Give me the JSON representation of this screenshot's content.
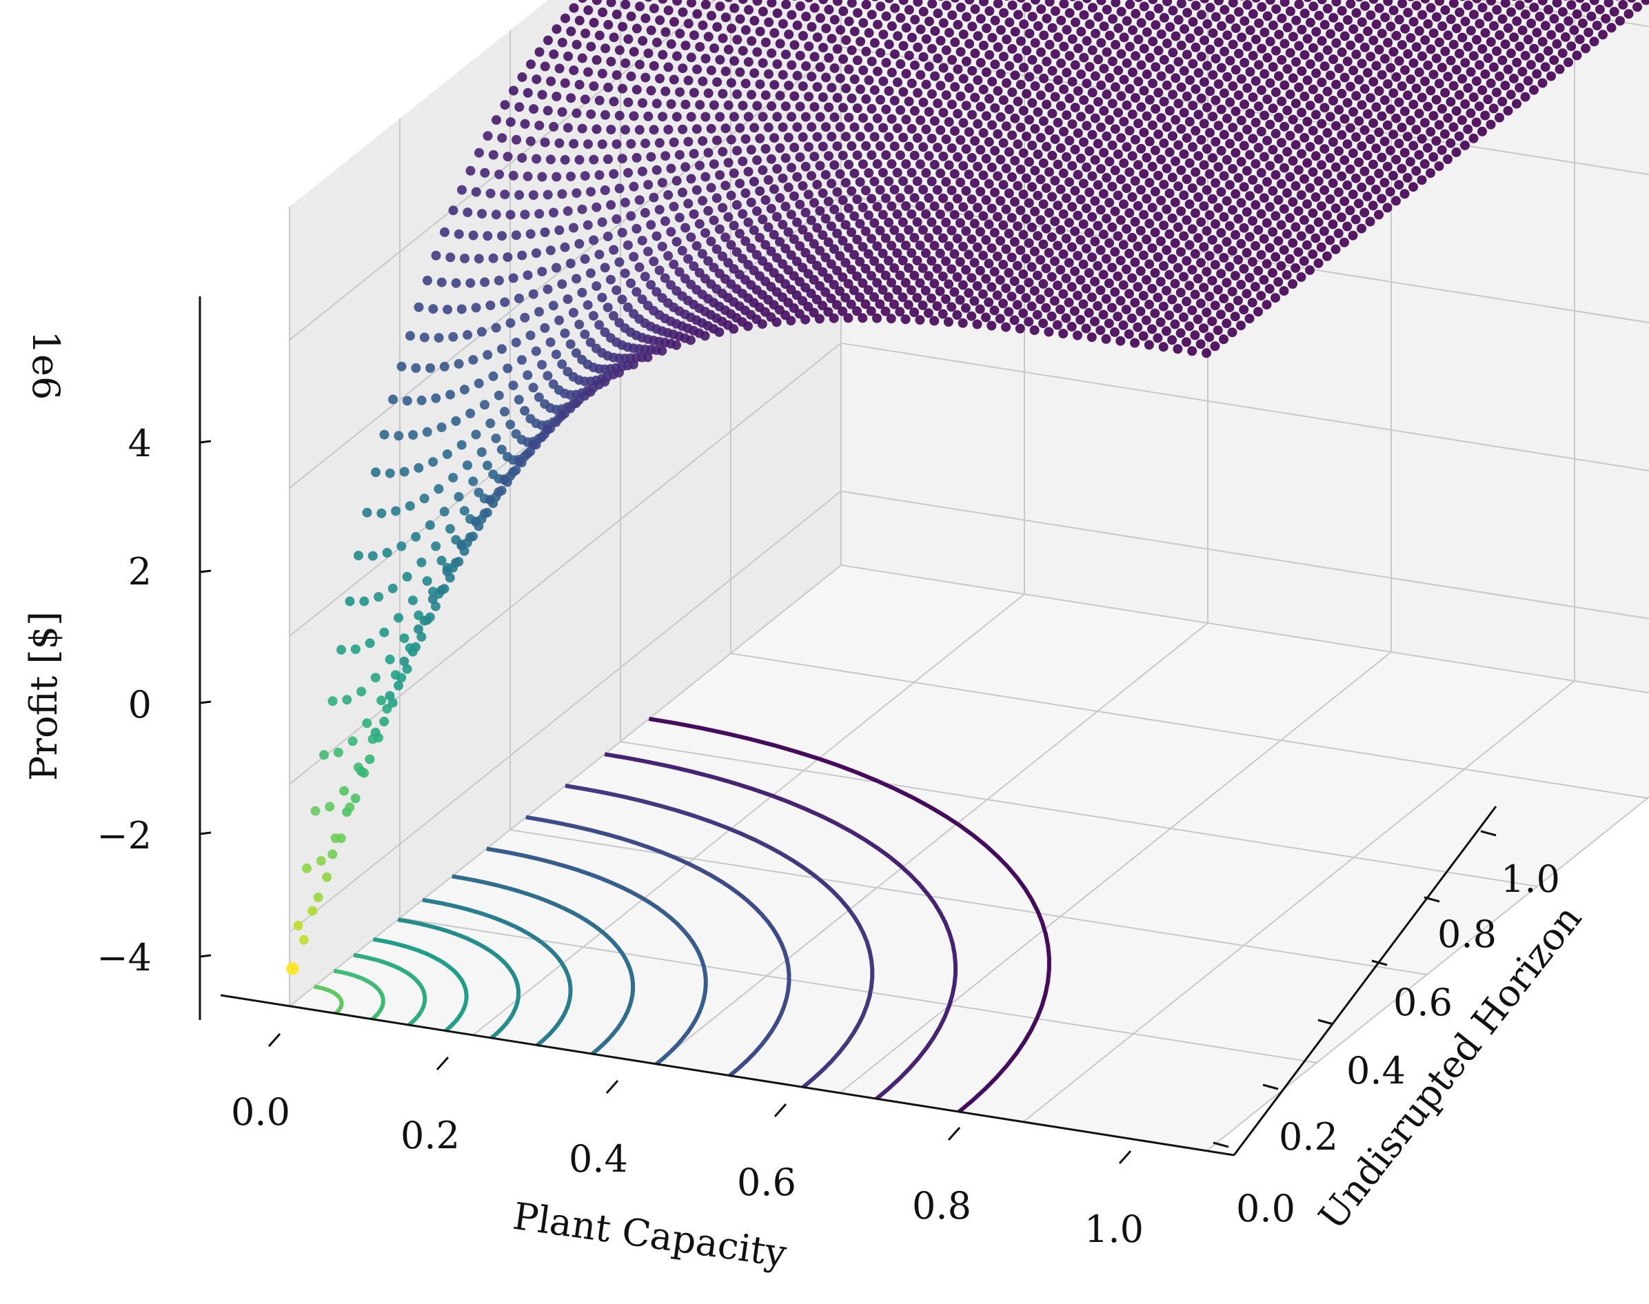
{
  "chart_data": {
    "type": "scatter",
    "projection": "3d",
    "xlabel": "Plant Capacity",
    "ylabel": "Undisrupted Horizon",
    "zlabel": "Profit [$]",
    "z_offset_label": "1e6",
    "x_ticks": [
      "0.0",
      "0.2",
      "0.4",
      "0.6",
      "0.8",
      "1.0"
    ],
    "y_ticks": [
      "0.0",
      "0.2",
      "0.4",
      "0.6",
      "0.8",
      "1.0"
    ],
    "z_ticks": [
      "−4",
      "−2",
      "0",
      "2",
      "4"
    ],
    "xlim": [
      0,
      1
    ],
    "ylim": [
      0,
      1
    ],
    "zlim": [
      -5,
      5.8
    ],
    "colormap": "viridis",
    "grid": true,
    "floor_contour_levels": [
      0.05,
      0.09,
      0.13,
      0.17,
      0.22,
      0.27,
      0.33,
      0.4,
      0.48,
      0.56,
      0.64,
      0.73
    ],
    "surface_note": "profit rises from about -4.6e6 at the origin and saturates near 5.8e6 for large plant capacity and horizon"
  }
}
